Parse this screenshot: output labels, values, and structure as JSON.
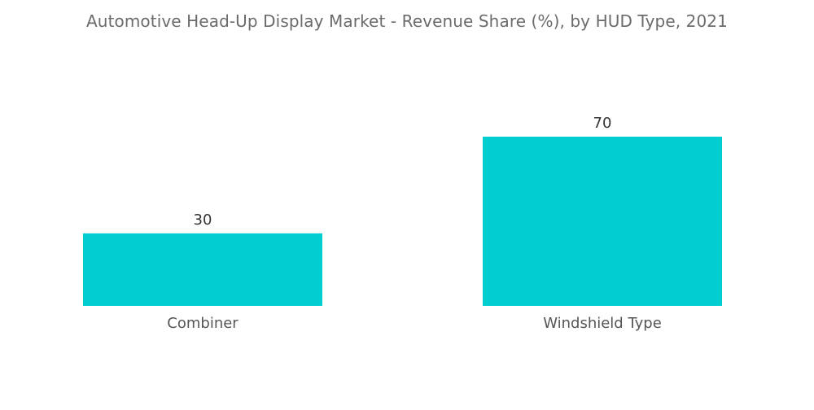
{
  "chart_data": {
    "type": "bar",
    "title": "Automotive Head-Up Display Market - Revenue Share (%), by HUD Type, 2021",
    "categories": [
      "Combiner",
      "Windshield Type"
    ],
    "values": [
      30,
      70
    ],
    "data_labels": [
      "30",
      "70"
    ],
    "xlabel": "",
    "ylabel": "",
    "ylim": [
      0,
      70
    ],
    "grid": false,
    "legend": "none",
    "bar_color": "#00ced1"
  }
}
